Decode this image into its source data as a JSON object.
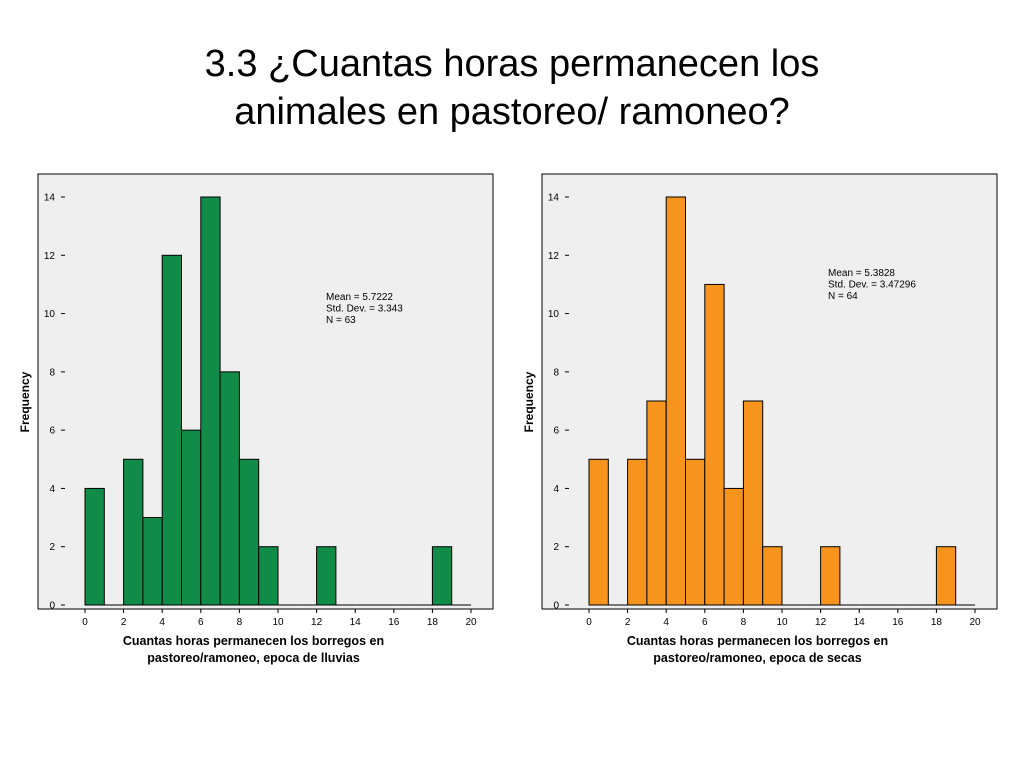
{
  "slide": {
    "title_line1": "3.3 ¿Cuantas horas permanecen los",
    "title_line2": "animales en pastoreo/ ramoneo?"
  },
  "chart_data": [
    {
      "type": "bar",
      "bar_color": "#118c48",
      "bin_start": [
        0,
        1,
        2,
        3,
        4,
        5,
        6,
        7,
        8,
        9,
        10,
        11,
        12,
        13,
        14,
        15,
        16,
        17,
        18,
        19
      ],
      "bin_width": 1,
      "values": [
        4,
        0,
        5,
        3,
        12,
        6,
        14,
        8,
        5,
        2,
        0,
        0,
        2,
        0,
        0,
        0,
        0,
        0,
        2,
        0
      ],
      "xlim": [
        0,
        20
      ],
      "ylim": [
        0,
        14
      ],
      "xticks": [
        0,
        2,
        4,
        6,
        8,
        10,
        12,
        14,
        16,
        18,
        20
      ],
      "yticks": [
        0,
        2,
        4,
        6,
        8,
        10,
        12,
        14
      ],
      "xlabel_line1": "Cuantas horas permanecen los borregos en",
      "xlabel_line2": "pastoreo/ramoneo, epoca de lluvias",
      "ylabel": "Frequency",
      "stats": [
        "Mean = 5.7222",
        "Std. Dev. = 3.343",
        "N = 63"
      ],
      "stats_placement": "upper-right",
      "plot_background": "#efefef"
    },
    {
      "type": "bar",
      "bar_color": "#f7941d",
      "bin_start": [
        0,
        1,
        2,
        3,
        4,
        5,
        6,
        7,
        8,
        9,
        10,
        11,
        12,
        13,
        14,
        15,
        16,
        17,
        18,
        19
      ],
      "bin_width": 1,
      "values": [
        5,
        0,
        5,
        7,
        14,
        5,
        11,
        4,
        7,
        2,
        0,
        0,
        2,
        0,
        0,
        0,
        0,
        0,
        2,
        0
      ],
      "xlim": [
        0,
        20
      ],
      "ylim": [
        0,
        14
      ],
      "xticks": [
        0,
        2,
        4,
        6,
        8,
        10,
        12,
        14,
        16,
        18,
        20
      ],
      "yticks": [
        0,
        2,
        4,
        6,
        8,
        10,
        12,
        14
      ],
      "xlabel_line1": "Cuantas horas permanecen los borregos en",
      "xlabel_line2": "pastoreo/ramoneo, epoca de secas",
      "ylabel": "Frequency",
      "stats": [
        "Mean = 5.3828",
        "Std. Dev. = 3.47296",
        "N = 64"
      ],
      "stats_placement": "upper-right",
      "plot_background": "#efefef"
    }
  ]
}
